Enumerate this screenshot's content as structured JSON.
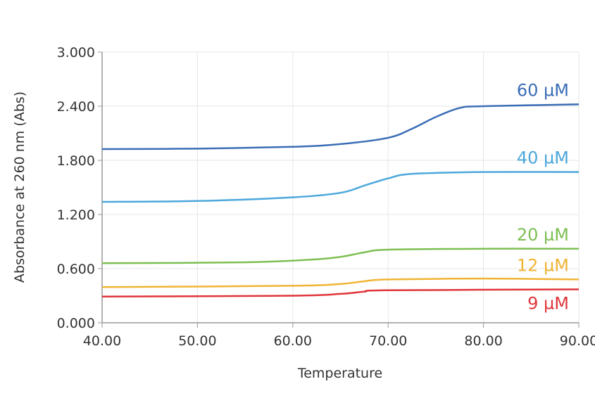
{
  "chart_data": {
    "type": "line",
    "title": "",
    "xlabel": "Temperature",
    "ylabel": "Absorbance at 260 nm (Abs)",
    "xlim": [
      40,
      90
    ],
    "ylim": [
      0,
      3
    ],
    "xticks": [
      "40.00",
      "50.00",
      "60.00",
      "70.00",
      "80.00",
      "90.00"
    ],
    "yticks": [
      "0.000",
      "0.600",
      "1.200",
      "1.800",
      "2.400",
      "3.000"
    ],
    "grid": true,
    "legend": "inline labels at right end of each line",
    "series": [
      {
        "name": "60 µM",
        "color": "#3b6db5",
        "x": [
          40,
          50,
          60,
          65,
          70,
          72.5,
          75,
          77.5,
          80,
          90
        ],
        "y": [
          1.925,
          1.93,
          1.95,
          1.98,
          2.05,
          2.15,
          2.28,
          2.38,
          2.4,
          2.42
        ]
      },
      {
        "name": "40 µM",
        "color": "#4ba7dc",
        "x": [
          40,
          50,
          60,
          65,
          67.5,
          70,
          72.5,
          80,
          90
        ],
        "y": [
          1.34,
          1.35,
          1.39,
          1.44,
          1.52,
          1.6,
          1.65,
          1.67,
          1.67
        ]
      },
      {
        "name": "20 µM",
        "color": "#7dbf52",
        "x": [
          40,
          55,
          62,
          65,
          67.5,
          70,
          80,
          90
        ],
        "y": [
          0.66,
          0.67,
          0.7,
          0.73,
          0.78,
          0.81,
          0.82,
          0.82
        ]
      },
      {
        "name": "12 µM",
        "color": "#f0b434",
        "x": [
          40,
          60,
          65,
          67.5,
          70,
          80,
          90
        ],
        "y": [
          0.395,
          0.41,
          0.43,
          0.46,
          0.48,
          0.49,
          0.48
        ]
      },
      {
        "name": "9 µM",
        "color": "#e0353a",
        "x": [
          40,
          60,
          65,
          67.5,
          70,
          90
        ],
        "y": [
          0.29,
          0.3,
          0.32,
          0.345,
          0.36,
          0.37
        ]
      }
    ]
  }
}
